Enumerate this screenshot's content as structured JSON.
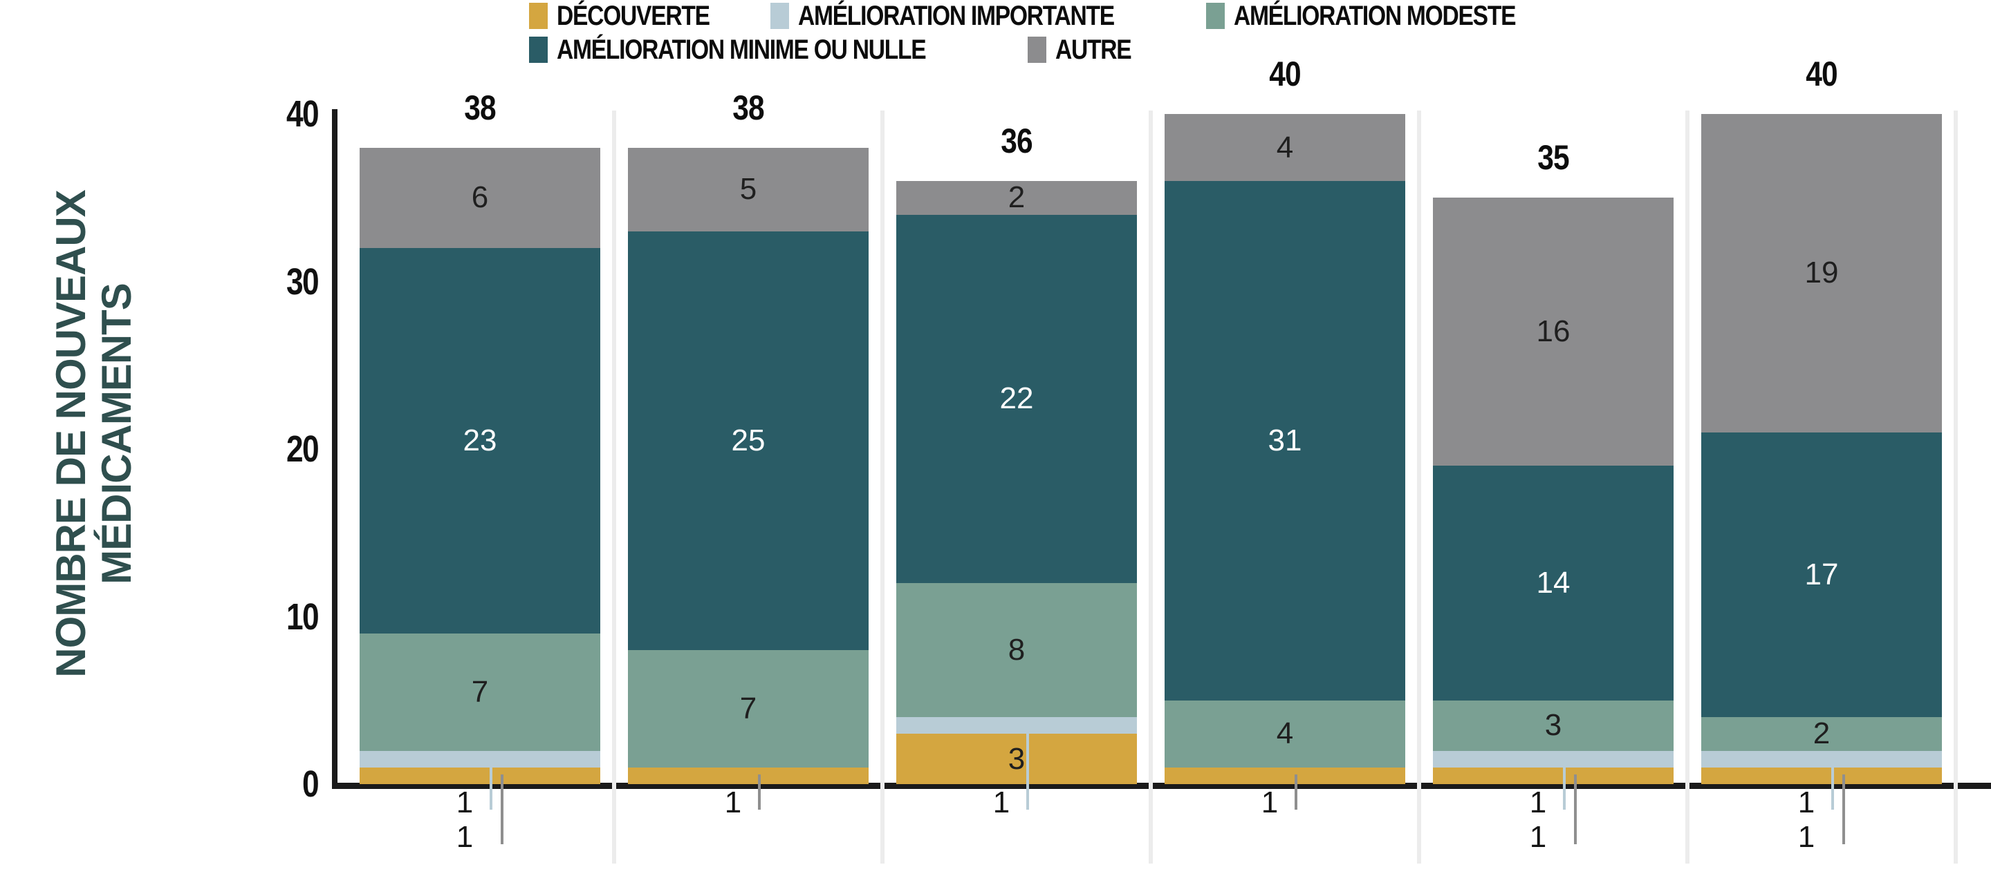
{
  "axis": {
    "y_title_line1": "NOMBRE DE NOUVEAUX",
    "y_title_line2": "MÉDICAMENTS"
  },
  "palette": {
    "decouverte": "#d4a640",
    "importante": "#b8ccd6",
    "modeste": "#7aa093",
    "minime": "#2a5c66",
    "autre": "#8c8c8e",
    "axis_line": "#1a1a1a",
    "y_title": "#2f4f4e",
    "label_on_dark": "#ffffff",
    "label_on_light": "#1f1f1f"
  },
  "chart_data": {
    "type": "bar",
    "subtype": "stacked",
    "title": "",
    "ylabel": "NOMBRE DE NOUVEAUX MÉDICAMENTS",
    "ylabel_line1": "NOMBRE DE NOUVEAUX",
    "ylabel_line2": "MÉDICAMENTS",
    "ylim": [
      0,
      40
    ],
    "y_ticks": [
      0,
      10,
      20,
      30,
      40
    ],
    "grid": false,
    "legend_position": "top",
    "x_tick_labels_visible": false,
    "series": [
      {
        "key": "decouverte",
        "label": "DÉCOUVERTE",
        "color": "#d4a640"
      },
      {
        "key": "importante",
        "label": "AMÉLIORATION IMPORTANTE",
        "color": "#b8ccd6"
      },
      {
        "key": "modeste",
        "label": "AMÉLIORATION MODESTE",
        "color": "#7aa093"
      },
      {
        "key": "minime",
        "label": "AMÉLIORATION MINIME OU NULLE",
        "color": "#2a5c66"
      },
      {
        "key": "autre",
        "label": "AUTRE",
        "color": "#8c8c8e"
      }
    ],
    "legend_rows": [
      [
        "decouverte",
        "importante",
        "modeste"
      ],
      [
        "minime",
        "autre"
      ]
    ],
    "leader_colors": {
      "importante": "#b8ccd6",
      "decouverte": "#8f8f8f"
    },
    "bars": [
      {
        "total": 38,
        "values": {
          "decouverte": 1,
          "importante": 1,
          "modeste": 7,
          "minime": 23,
          "autre": 6
        },
        "inline_labels": [
          "modeste",
          "minime",
          "autre"
        ],
        "callouts": [
          {
            "key": "importante",
            "value": 1
          },
          {
            "key": "decouverte",
            "value": 1
          }
        ]
      },
      {
        "total": 38,
        "values": {
          "decouverte": 1,
          "importante": 0,
          "modeste": 7,
          "minime": 25,
          "autre": 5
        },
        "inline_labels": [
          "modeste",
          "minime",
          "autre"
        ],
        "callouts": [
          {
            "key": "decouverte",
            "value": 1
          }
        ]
      },
      {
        "total": 36,
        "values": {
          "decouverte": 3,
          "importante": 1,
          "modeste": 8,
          "minime": 22,
          "autre": 2
        },
        "inline_labels": [
          "decouverte",
          "modeste",
          "minime",
          "autre"
        ],
        "callouts": [
          {
            "key": "importante",
            "value": 1
          }
        ]
      },
      {
        "total": 40,
        "values": {
          "decouverte": 1,
          "importante": 0,
          "modeste": 4,
          "minime": 31,
          "autre": 4
        },
        "inline_labels": [
          "modeste",
          "minime",
          "autre"
        ],
        "callouts": [
          {
            "key": "decouverte",
            "value": 1
          }
        ]
      },
      {
        "total": 35,
        "values": {
          "decouverte": 1,
          "importante": 1,
          "modeste": 3,
          "minime": 14,
          "autre": 16
        },
        "inline_labels": [
          "modeste",
          "minime",
          "autre"
        ],
        "callouts": [
          {
            "key": "importante",
            "value": 1
          },
          {
            "key": "decouverte",
            "value": 1
          }
        ]
      },
      {
        "total": 40,
        "values": {
          "decouverte": 1,
          "importante": 1,
          "modeste": 2,
          "minime": 17,
          "autre": 19
        },
        "inline_labels": [
          "modeste",
          "minime",
          "autre"
        ],
        "callouts": [
          {
            "key": "importante",
            "value": 1
          },
          {
            "key": "decouverte",
            "value": 1
          }
        ]
      }
    ]
  }
}
